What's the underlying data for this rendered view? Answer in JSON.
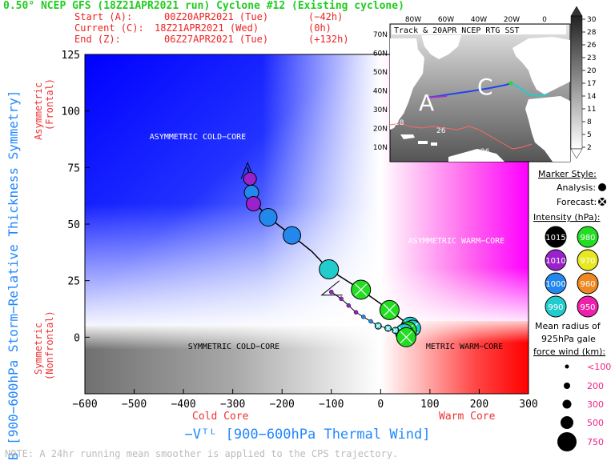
{
  "header": {
    "title": "0.50° NCEP GFS (18Z21APR2021 run) Cyclone #12 (Existing cyclone)",
    "start_label": "Start (A):",
    "start_value": "00Z20APR2021 (Tue)",
    "start_offset": "(−42h)",
    "current_label": "Current (C):",
    "current_value": "18Z21APR2021 (Wed)",
    "current_offset": "(0h)",
    "end_label": "End (Z):",
    "end_value": "06Z27APR2021 (Tue)",
    "end_offset": "(+132h)"
  },
  "axes": {
    "ylabel": "B [900−600hPa Storm−Relative Thickness Symmetry]",
    "xlabel": "−Vᵀᴸ [900−600hPa Thermal Wind]",
    "y_top_label_1": "Asymmetric",
    "y_top_label_2": "(Frontal)",
    "y_bot_label_1": "Symmetric",
    "y_bot_label_2": "(Nonfrontal)",
    "x_left_label": "Cold Core",
    "x_right_label": "Warm Core"
  },
  "quadrants": {
    "asym_cold": "ASYMMETRIC COLD−CORE",
    "asym_warm": "ASYMMETRIC WARM−CORE",
    "sym_cold": "SYMMETRIC COLD−CORE",
    "sym_warm": "METRIC WARM−CORE"
  },
  "inset": {
    "title": "Track & 20APR NCEP RTG SST",
    "lon_labels": [
      "80W",
      "60W",
      "40W",
      "20W",
      "0"
    ],
    "lat_labels": [
      "70N",
      "60N",
      "50N",
      "40N",
      "30N",
      "20N",
      "10N"
    ],
    "letter_a": "A",
    "letter_c": "C",
    "sst_labels": [
      "28",
      "26",
      "26"
    ],
    "colorbar_ticks": [
      "30",
      "28",
      "26",
      "23",
      "20",
      "17",
      "14",
      "11",
      "8",
      "5",
      "2"
    ]
  },
  "legend": {
    "marker_title": "Marker Style:",
    "analysis": "Analysis:",
    "forecast": "Forecast:",
    "intensity_title": "Intensity (hPa):",
    "intensity": [
      {
        "label": "1015",
        "color": "#000000",
        "text_color": "#ffffff"
      },
      {
        "label": "980",
        "color": "#22dd22",
        "text_color": "#ffffff"
      },
      {
        "label": "1010",
        "color": "#9a22cc",
        "text_color": "#ffffff"
      },
      {
        "label": "970",
        "color": "#e8e820",
        "text_color": "#ffffff"
      },
      {
        "label": "1000",
        "color": "#2288ee",
        "text_color": "#ffffff"
      },
      {
        "label": "960",
        "color": "#ee8822",
        "text_color": "#ffffff"
      },
      {
        "label": "990",
        "color": "#22cccc",
        "text_color": "#ffffff"
      },
      {
        "label": "950",
        "color": "#ee22aa",
        "text_color": "#ffffff"
      }
    ],
    "radius_title_1": "Mean radius of",
    "radius_title_2": "925hPa gale",
    "radius_title_3": "force wind (km):",
    "radius_sizes": [
      "<100",
      "200",
      "300",
      "500",
      "750"
    ]
  },
  "note": "NOTE:  A 24hr running mean smoother is applied to the CPS trajectory.",
  "chart_data": {
    "type": "scatter",
    "xlim": [
      -600,
      300
    ],
    "ylim": [
      -25,
      125
    ],
    "xticks": [
      -600,
      -500,
      -400,
      -300,
      -200,
      -100,
      0,
      100,
      200,
      300
    ],
    "yticks": [
      0,
      25,
      50,
      75,
      100,
      125
    ],
    "analysis_points": [
      {
        "x": -265,
        "y": 70,
        "r": 8,
        "color": "#9a22cc"
      },
      {
        "x": -262,
        "y": 64,
        "r": 9,
        "color": "#2288ee"
      },
      {
        "x": -258,
        "y": 59,
        "r": 9,
        "color": "#9a22cc"
      },
      {
        "x": -228,
        "y": 53,
        "r": 11,
        "color": "#2288ee"
      },
      {
        "x": -180,
        "y": 45,
        "r": 11,
        "color": "#2288ee"
      },
      {
        "x": -105,
        "y": 30,
        "r": 12,
        "color": "#22cccc"
      }
    ],
    "forecast_points": [
      {
        "x": -40,
        "y": 21,
        "r": 12,
        "color": "#22dd22"
      },
      {
        "x": 18,
        "y": 12,
        "r": 12,
        "color": "#22dd22"
      },
      {
        "x": 60,
        "y": 5,
        "r": 11,
        "color": "#22cccc"
      },
      {
        "x": 65,
        "y": 4,
        "r": 10,
        "color": "#22cccc"
      },
      {
        "x": 55,
        "y": 3,
        "r": 11,
        "color": "#22dd22"
      },
      {
        "x": 48,
        "y": 2,
        "r": 11,
        "color": "#22cccc"
      },
      {
        "x": 52,
        "y": 0,
        "r": 12,
        "color": "#22dd22"
      },
      {
        "x": 30,
        "y": 3,
        "r": 4,
        "color": "#22cccc"
      },
      {
        "x": 15,
        "y": 4,
        "r": 4,
        "color": "#22cccc"
      },
      {
        "x": -5,
        "y": 5,
        "r": 4,
        "color": "#22cccc"
      }
    ],
    "track_line": [
      [
        -270,
        75
      ],
      [
        -265,
        70
      ],
      [
        -258,
        60
      ],
      [
        -228,
        53
      ],
      [
        -180,
        45
      ],
      [
        -140,
        38
      ],
      [
        -105,
        30
      ],
      [
        -40,
        21
      ],
      [
        18,
        12
      ],
      [
        60,
        5
      ]
    ],
    "forecast_small_track": [
      [
        -100,
        20
      ],
      [
        -80,
        17
      ],
      [
        -65,
        14
      ],
      [
        -50,
        11
      ],
      [
        -35,
        9
      ],
      [
        -20,
        7
      ],
      [
        -5,
        5
      ],
      [
        15,
        4
      ],
      [
        30,
        3
      ]
    ]
  }
}
